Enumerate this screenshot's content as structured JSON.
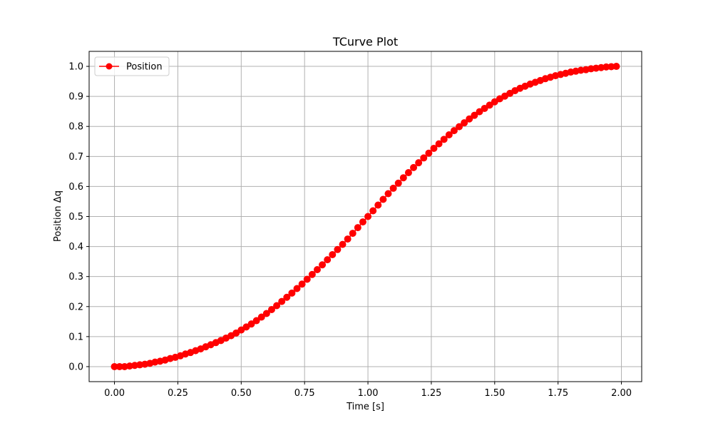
{
  "chart_data": {
    "type": "line",
    "title": "TCurve Plot",
    "xlabel": "Time [s]",
    "ylabel": "Position Δq",
    "xlim": [
      -0.1,
      2.08
    ],
    "ylim": [
      -0.05,
      1.05
    ],
    "grid": true,
    "legend_position": "top-left",
    "x_ticks": [
      0.0,
      0.25,
      0.5,
      0.75,
      1.0,
      1.25,
      1.5,
      1.75,
      2.0
    ],
    "x_tick_labels": [
      "0.00",
      "0.25",
      "0.50",
      "0.75",
      "1.00",
      "1.25",
      "1.50",
      "1.75",
      "2.00"
    ],
    "y_ticks": [
      0.0,
      0.1,
      0.2,
      0.3,
      0.4,
      0.5,
      0.6,
      0.7,
      0.8,
      0.9,
      1.0
    ],
    "y_tick_labels": [
      "0.0",
      "0.1",
      "0.2",
      "0.3",
      "0.4",
      "0.5",
      "0.6",
      "0.7",
      "0.8",
      "0.9",
      "1.0"
    ],
    "series": [
      {
        "name": "Position",
        "color": "#ff0000",
        "marker": "circle",
        "x": [
          0.0,
          0.02,
          0.04,
          0.06,
          0.08,
          0.1,
          0.12,
          0.14,
          0.16,
          0.18,
          0.2,
          0.22,
          0.24,
          0.26,
          0.28,
          0.3,
          0.32,
          0.34,
          0.36,
          0.38,
          0.4,
          0.42,
          0.44,
          0.46,
          0.48,
          0.5,
          0.52,
          0.54,
          0.56,
          0.58,
          0.6,
          0.62,
          0.64,
          0.66,
          0.68,
          0.7,
          0.72,
          0.74,
          0.76,
          0.78,
          0.8,
          0.82,
          0.84,
          0.86,
          0.88,
          0.9,
          0.92,
          0.94,
          0.96,
          0.98,
          1.0,
          1.02,
          1.04,
          1.06,
          1.08,
          1.1,
          1.12,
          1.14,
          1.16,
          1.18,
          1.2,
          1.22,
          1.24,
          1.26,
          1.28,
          1.3,
          1.32,
          1.34,
          1.36,
          1.38,
          1.4,
          1.42,
          1.44,
          1.46,
          1.48,
          1.5,
          1.52,
          1.54,
          1.56,
          1.58,
          1.6,
          1.62,
          1.64,
          1.66,
          1.68,
          1.7,
          1.72,
          1.74,
          1.76,
          1.78,
          1.8,
          1.82,
          1.84,
          1.86,
          1.88,
          1.9,
          1.92,
          1.94,
          1.96,
          1.98
        ],
        "values": [
          0.0,
          0.0,
          0.0,
          0.002,
          0.004,
          0.006,
          0.008,
          0.011,
          0.015,
          0.018,
          0.022,
          0.027,
          0.031,
          0.036,
          0.042,
          0.047,
          0.053,
          0.059,
          0.066,
          0.073,
          0.08,
          0.087,
          0.095,
          0.103,
          0.112,
          0.122,
          0.132,
          0.142,
          0.153,
          0.165,
          0.177,
          0.19,
          0.203,
          0.217,
          0.231,
          0.245,
          0.26,
          0.275,
          0.291,
          0.307,
          0.323,
          0.339,
          0.356,
          0.373,
          0.39,
          0.407,
          0.425,
          0.444,
          0.463,
          0.482,
          0.5,
          0.519,
          0.538,
          0.557,
          0.576,
          0.594,
          0.611,
          0.629,
          0.646,
          0.663,
          0.679,
          0.695,
          0.711,
          0.727,
          0.742,
          0.757,
          0.772,
          0.786,
          0.799,
          0.812,
          0.825,
          0.837,
          0.849,
          0.86,
          0.871,
          0.882,
          0.892,
          0.901,
          0.91,
          0.919,
          0.927,
          0.934,
          0.941,
          0.947,
          0.953,
          0.959,
          0.964,
          0.969,
          0.973,
          0.977,
          0.981,
          0.984,
          0.987,
          0.989,
          0.992,
          0.994,
          0.996,
          0.998,
          0.999,
          1.0
        ]
      }
    ]
  }
}
